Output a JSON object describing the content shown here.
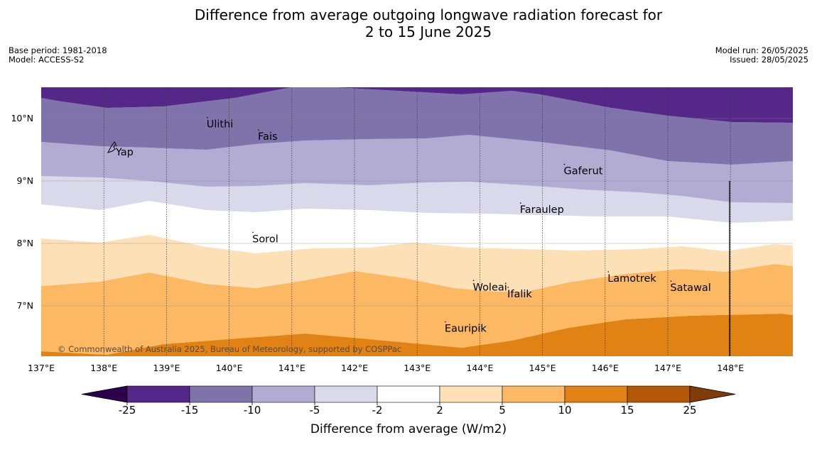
{
  "title_line1": "Difference from average outgoing longwave radiation forecast for",
  "title_line2": "2 to 15 June 2025",
  "base_period": "Base period: 1981-2018",
  "model": "Model: ACCESS-S2",
  "model_run": "Model run: 26/05/2025",
  "issued": "Issued: 28/05/2025",
  "copyright": "© Commonwealth of Australia 2025, Bureau of Meteorology, supported by COSPPac",
  "longitude_ticks": [
    "137°E",
    "138°E",
    "139°E",
    "140°E",
    "141°E",
    "142°E",
    "143°E",
    "144°E",
    "145°E",
    "146°E",
    "147°E",
    "148°E"
  ],
  "latitude_ticks": [
    "10°N",
    "9°N",
    "8°N",
    "7°N"
  ],
  "places": [
    {
      "name": "Yap",
      "lon": 138.2,
      "lat": 9.52
    },
    {
      "name": "Ulithi",
      "lon": 139.65,
      "lat": 9.97
    },
    {
      "name": "Fais",
      "lon": 140.47,
      "lat": 9.77
    },
    {
      "name": "Gaferut",
      "lon": 145.35,
      "lat": 9.22
    },
    {
      "name": "Faraulep",
      "lon": 144.65,
      "lat": 8.6
    },
    {
      "name": "Sorol",
      "lon": 140.38,
      "lat": 8.13
    },
    {
      "name": "Woleai",
      "lon": 143.9,
      "lat": 7.36
    },
    {
      "name": "Ifalik",
      "lon": 144.45,
      "lat": 7.25
    },
    {
      "name": "Lamotrek",
      "lon": 146.05,
      "lat": 7.5
    },
    {
      "name": "Satawal",
      "lon": 147.05,
      "lat": 7.35
    },
    {
      "name": "Eauripik",
      "lon": 143.45,
      "lat": 6.7
    }
  ],
  "colorbar": {
    "label": "Difference from average (W/m2)",
    "ticks": [
      "-25",
      "-15",
      "-10",
      "-5",
      "-2",
      "2",
      "5",
      "10",
      "15",
      "25"
    ],
    "colors": [
      "#542788",
      "#8073ac",
      "#b2abd2",
      "#d8daeb",
      "#ffffff",
      "#fee0b6",
      "#fdb863",
      "#e08214",
      "#b35806"
    ],
    "extend_low": "#2d004b",
    "extend_high": "#7f3b08"
  }
}
